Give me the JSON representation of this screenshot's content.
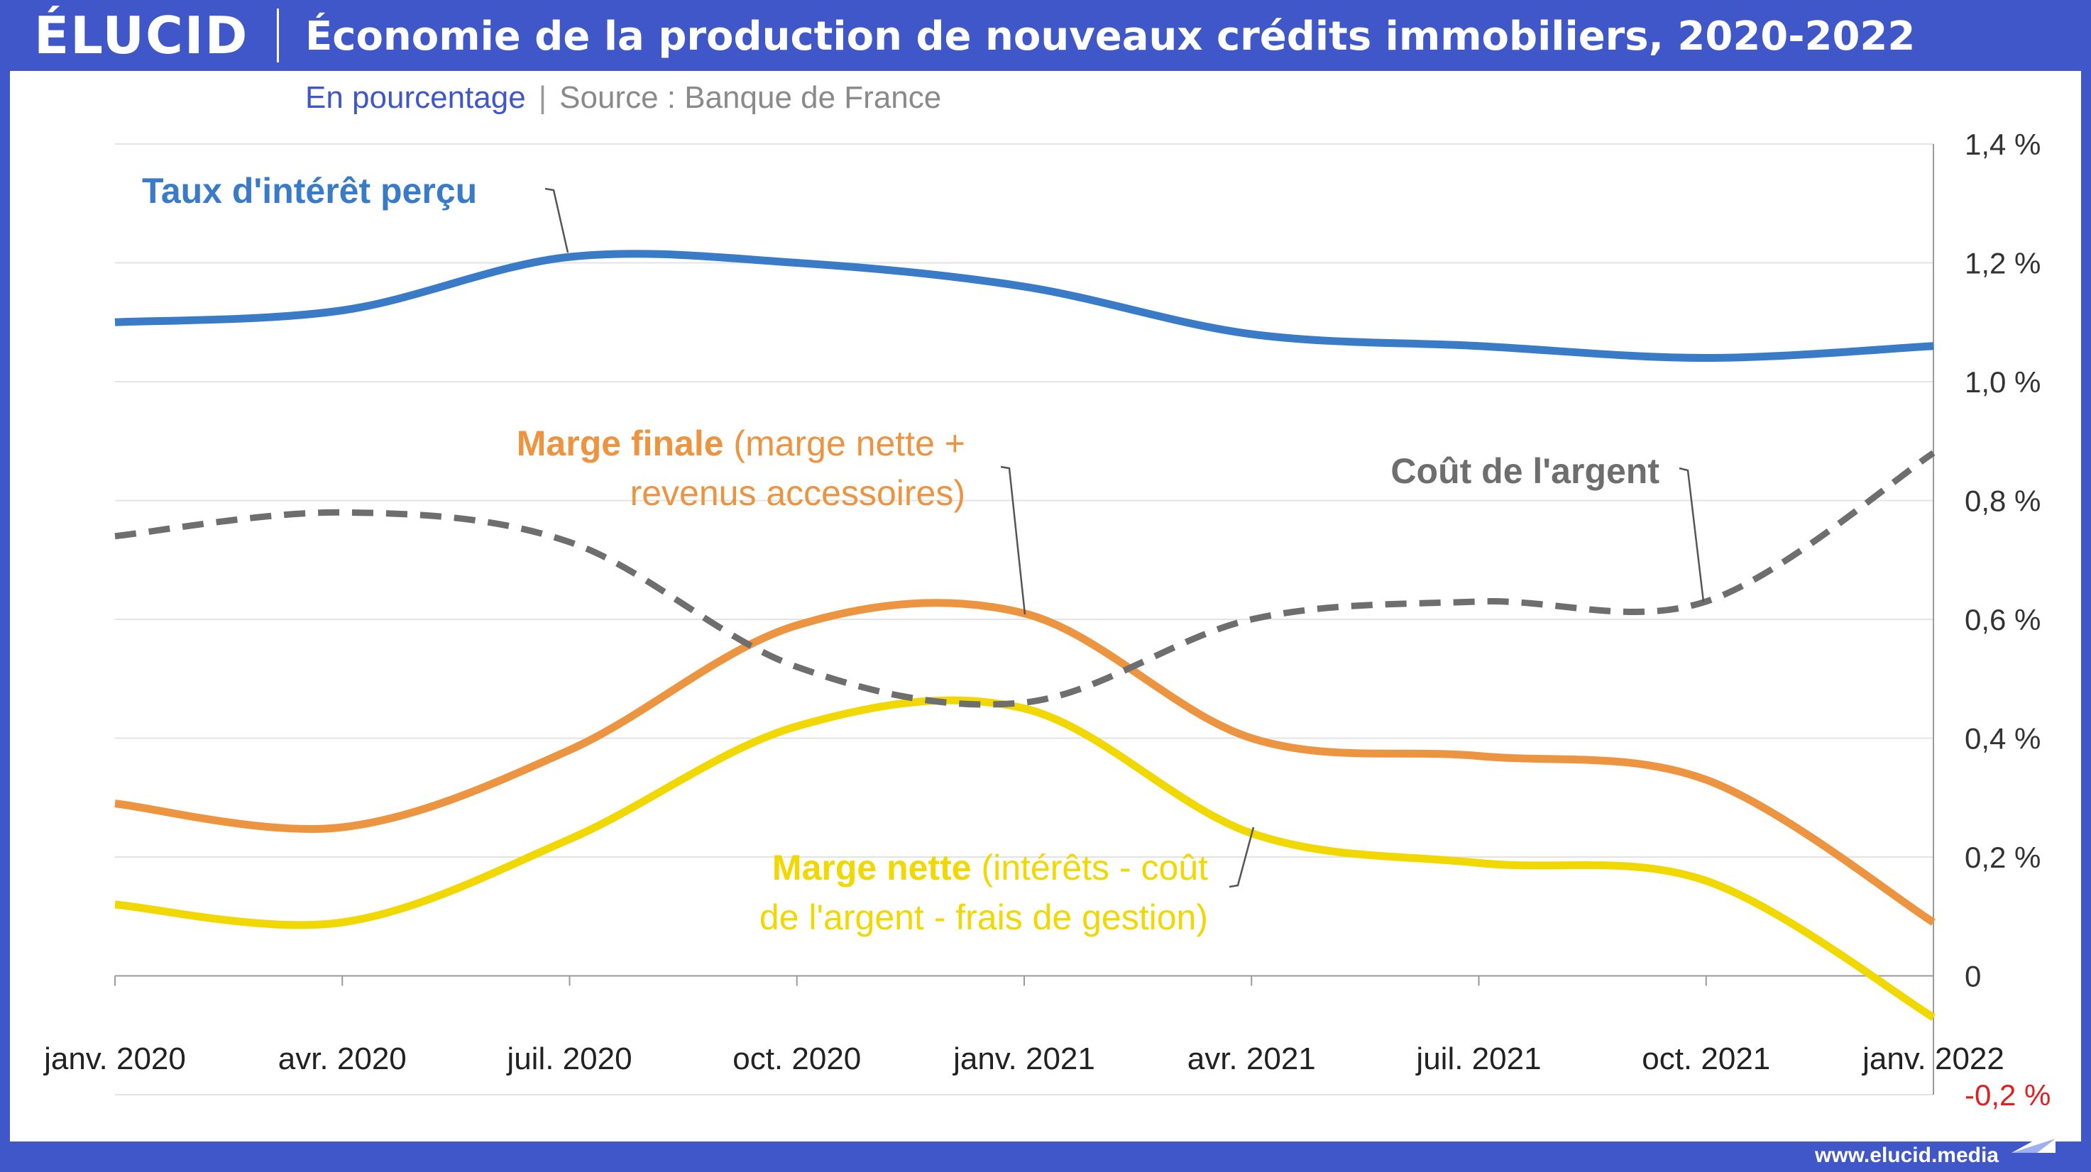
{
  "brand": {
    "logo": "ÉLUCID",
    "site": "www.elucid.media"
  },
  "header": {
    "title": "Économie de la production de nouveaux crédits immobiliers, 2020-2022",
    "unit": "En pourcentage",
    "separator": "|",
    "source": "Source : Banque de France"
  },
  "chart_data": {
    "type": "line",
    "title": "Économie de la production de nouveaux crédits immobiliers, 2020-2022",
    "x_ticks": [
      "janv. 2020",
      "avr. 2020",
      "juil. 2020",
      "oct. 2020",
      "janv. 2021",
      "avr. 2021",
      "juil. 2021",
      "oct. 2021",
      "janv. 2022"
    ],
    "y_ticks": [
      "1,4 %",
      "1,2 %",
      "1,0 %",
      "0,8 %",
      "0,6 %",
      "0,4 %",
      "0,2 %",
      "0",
      "-0,2 %"
    ],
    "ylim": [
      -0.2,
      1.4
    ],
    "grid": true,
    "y_axis_position": "right",
    "series": [
      {
        "key": "taux",
        "label_bold": "Taux d'intérêt perçu",
        "label_rest": "",
        "color": "#3a7bc8",
        "dash": false,
        "values": [
          1.1,
          1.12,
          1.21,
          1.2,
          1.16,
          1.08,
          1.06,
          1.04,
          1.06
        ]
      },
      {
        "key": "cout",
        "label_bold": "Coût de l'argent",
        "label_rest": "",
        "color": "#6e6e6e",
        "dash": true,
        "values": [
          0.74,
          0.78,
          0.73,
          0.52,
          0.46,
          0.6,
          0.63,
          0.63,
          0.88
        ]
      },
      {
        "key": "marge_finale",
        "label_bold": "Marge finale",
        "label_rest": " (marge nette +",
        "label_line2": "revenus accessoires)",
        "color": "#ec9440",
        "dash": false,
        "values": [
          0.29,
          0.25,
          0.38,
          0.59,
          0.61,
          0.4,
          0.37,
          0.33,
          0.09
        ]
      },
      {
        "key": "marge_nette",
        "label_bold": "Marge nette",
        "label_rest": " (intérêts - coût",
        "label_line2": "de l'argent - frais de gestion)",
        "color": "#f0d800",
        "dash": false,
        "values": [
          0.12,
          0.09,
          0.23,
          0.42,
          0.45,
          0.24,
          0.19,
          0.16,
          -0.07
        ]
      }
    ]
  },
  "colors": {
    "brand_blue": "#3f57c8",
    "negative_tick": "#e02020",
    "grid": "#e3e3e3"
  }
}
